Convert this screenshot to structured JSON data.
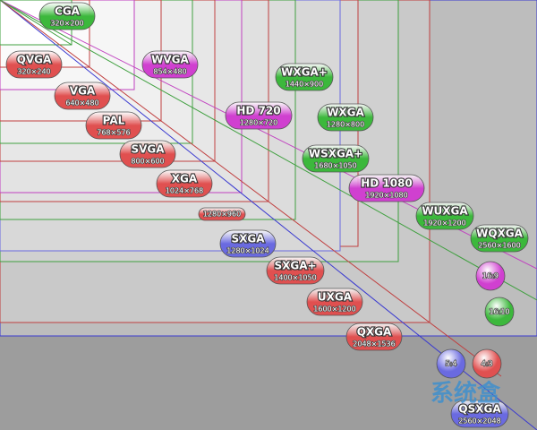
{
  "labels": [
    {
      "name": "CGA",
      "resolution": "320×200",
      "color": "#3cb83c"
    },
    {
      "name": "QVGA",
      "resolution": "320×240",
      "color": "#e05050"
    },
    {
      "name": "WVGA",
      "resolution": "854×480",
      "color": "#d040d0"
    },
    {
      "name": "VGA",
      "resolution": "640×480",
      "color": "#e05050"
    },
    {
      "name": "WXGA+",
      "resolution": "1440×900",
      "color": "#3cb83c"
    },
    {
      "name": "PAL",
      "resolution": "768×576",
      "color": "#e05050"
    },
    {
      "name": "HD 720",
      "resolution": "1280×720",
      "color": "#d040d0"
    },
    {
      "name": "WXGA",
      "resolution": "1280×800",
      "color": "#3cb83c"
    },
    {
      "name": "SVGA",
      "resolution": "800×600",
      "color": "#e05050"
    },
    {
      "name": "WSXGA+",
      "resolution": "1680×1050",
      "color": "#3cb83c"
    },
    {
      "name": "XGA",
      "resolution": "1024×768",
      "color": "#e05050"
    },
    {
      "name": "HD 1080",
      "resolution": "1920×1080",
      "color": "#d040d0"
    },
    {
      "resolution": "1280×960",
      "color": "#e05050"
    },
    {
      "name": "WUXGA",
      "resolution": "1920×1200",
      "color": "#3cb83c"
    },
    {
      "name": "SXGA",
      "resolution": "1280×1024",
      "color": "#6a6ae0"
    },
    {
      "name": "WQXGA",
      "resolution": "2560×1600",
      "color": "#3cb83c"
    },
    {
      "name": "SXGA+",
      "resolution": "1400×1050",
      "color": "#e05050"
    },
    {
      "name": "UXGA",
      "resolution": "1600×1200",
      "color": "#e05050"
    },
    {
      "name": "QXGA",
      "resolution": "2048×1536",
      "color": "#e05050"
    },
    {
      "name": "QSXGA",
      "resolution": "2560×2048",
      "color": "#6a6ae0"
    }
  ],
  "ratios": [
    {
      "name": "16:9",
      "color": "#d040d0"
    },
    {
      "name": "16:10",
      "color": "#3cb83c"
    },
    {
      "name": "5:4",
      "color": "#6a6ae0"
    },
    {
      "name": "4:3",
      "color": "#e05050"
    }
  ],
  "watermark": "系统盒"
}
